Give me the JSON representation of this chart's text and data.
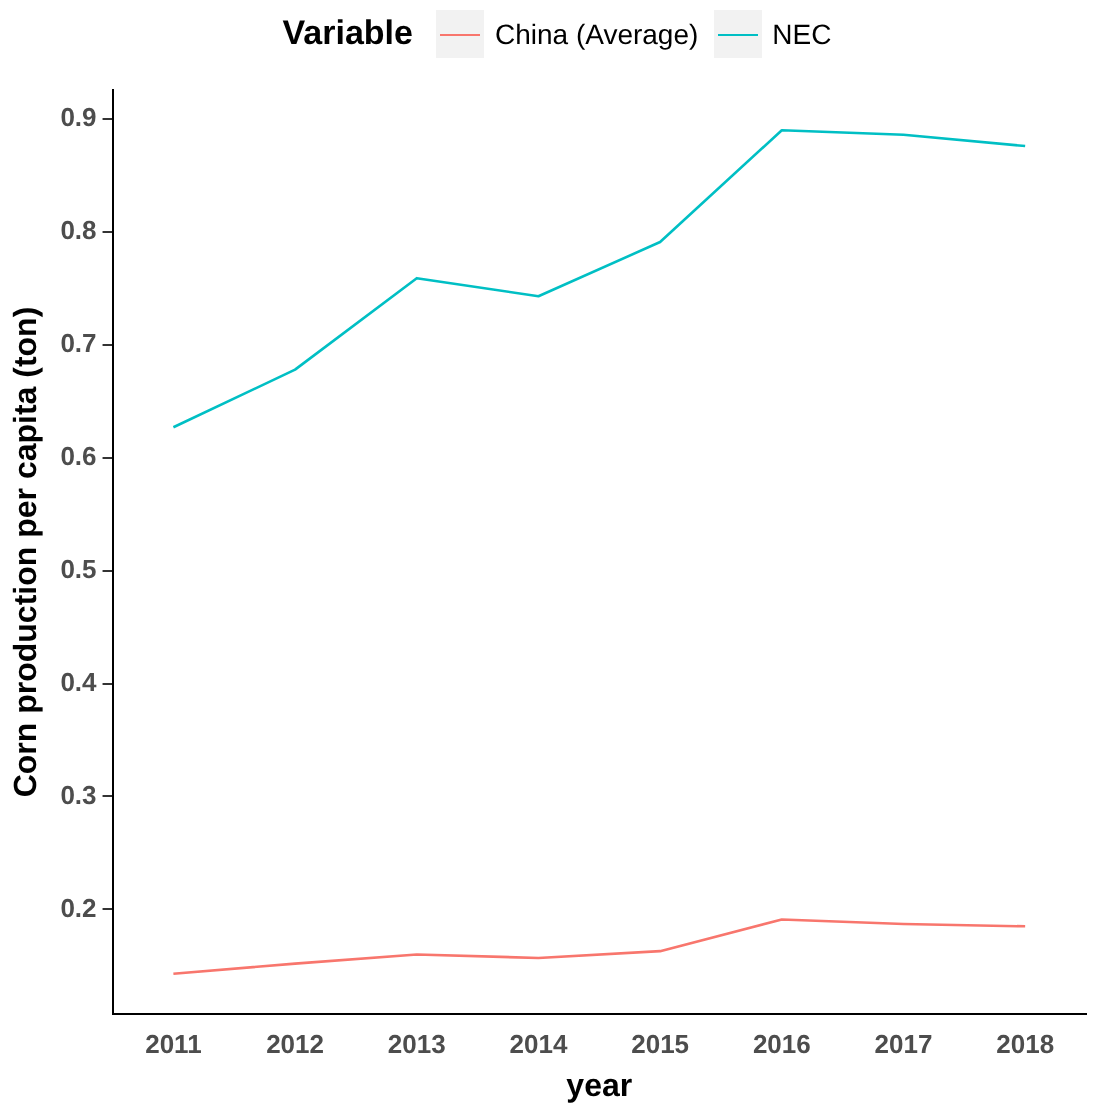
{
  "chart_data": {
    "type": "line",
    "xlabel": "year",
    "ylabel": "Corn production per capita (ton)",
    "legend_title": "Variable",
    "legend": "top",
    "categories": [
      "2011",
      "2012",
      "2013",
      "2014",
      "2015",
      "2016",
      "2017",
      "2018"
    ],
    "series": [
      {
        "name": "China (Average)",
        "color": "#f8766d",
        "values": [
          0.143,
          0.152,
          0.16,
          0.157,
          0.163,
          0.191,
          0.187,
          0.185
        ]
      },
      {
        "name": "NEC",
        "color": "#00bfc4",
        "values": [
          0.627,
          0.678,
          0.759,
          0.743,
          0.791,
          0.89,
          0.886,
          0.876
        ]
      }
    ],
    "ylim": [
      0.107,
      0.926
    ],
    "yticks": [
      0.2,
      0.3,
      0.4,
      0.5,
      0.6,
      0.7,
      0.8,
      0.9
    ],
    "grid": false,
    "marker": "none",
    "line_style": "solid"
  }
}
